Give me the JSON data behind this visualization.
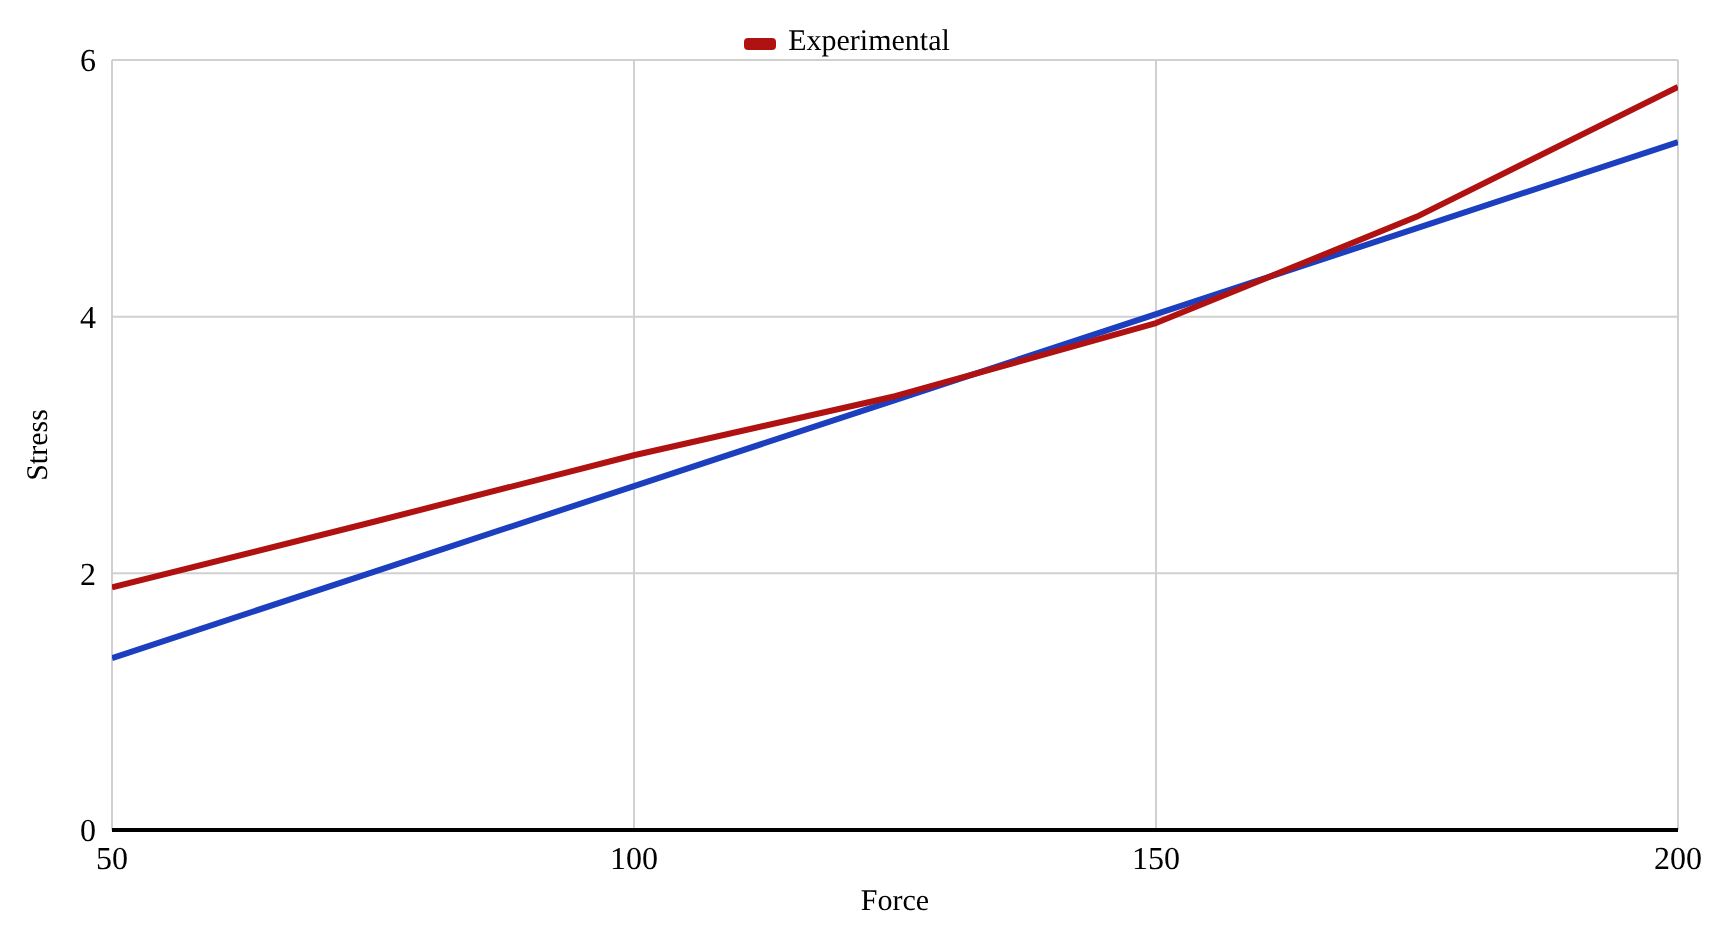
{
  "chart_data": {
    "type": "line",
    "xlabel": "Force",
    "ylabel": "Stress",
    "x": [
      50,
      75,
      100,
      125,
      150,
      175,
      200
    ],
    "series": [
      {
        "color": "#1c3fc0",
        "values": [
          1.34,
          2.01,
          2.68,
          3.35,
          4.02,
          4.69,
          5.36
        ]
      },
      {
        "name": "Experimental",
        "color": "#b01212",
        "values": [
          1.89,
          2.4,
          2.92,
          3.38,
          3.95,
          4.78,
          5.79
        ]
      }
    ],
    "xlim": [
      50,
      200
    ],
    "xticks": [
      50,
      100,
      150,
      200
    ],
    "ylim": [
      0,
      6
    ],
    "yticks": [
      0,
      2,
      4,
      6
    ],
    "grid": true,
    "legend": "top",
    "marker": "none",
    "line_style": "solid"
  }
}
